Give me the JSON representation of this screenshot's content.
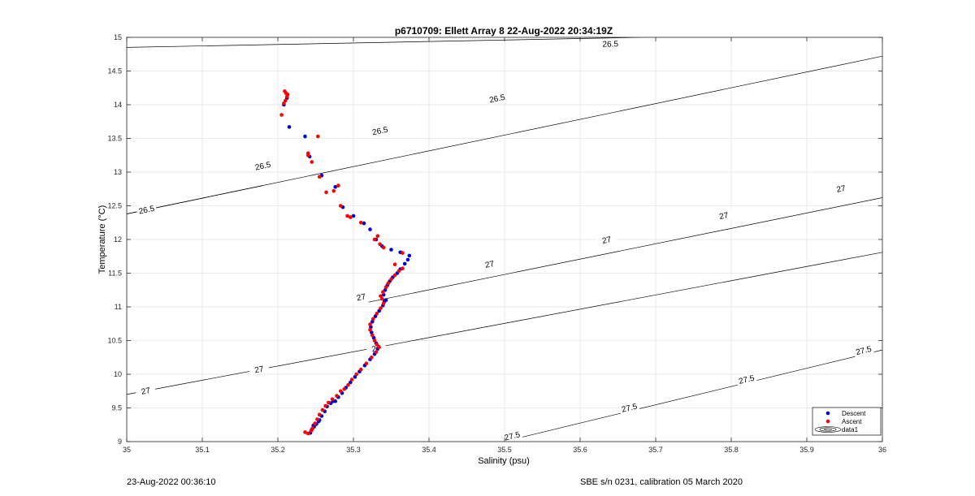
{
  "footer": {
    "left": "23-Aug-2022 00:36:10",
    "right": "SBE s/n 0231, calibration 05 March 2020"
  },
  "chart_data": {
    "type": "scatter",
    "title": "p6710709: Ellett Array 8 22-Aug-2022 20:34:19Z",
    "xlabel": "Salinity (psu)",
    "ylabel": "Temperature (°C)",
    "xlim": [
      35,
      36
    ],
    "ylim": [
      9,
      15
    ],
    "xticks": [
      35,
      35.1,
      35.2,
      35.3,
      35.4,
      35.5,
      35.6,
      35.7,
      35.8,
      35.9,
      36
    ],
    "xtick_labels": [
      "35",
      "35.1",
      "35.2",
      "35.3",
      "35.4",
      "35.5",
      "35.6",
      "35.7",
      "35.8",
      "35.9",
      "36"
    ],
    "yticks": [
      9,
      9.5,
      10,
      10.5,
      11,
      11.5,
      12,
      12.5,
      13,
      13.5,
      14,
      14.5,
      15
    ],
    "ytick_labels": [
      "9",
      "9.5",
      "10",
      "10.5",
      "11",
      "11.5",
      "12",
      "12.5",
      "13",
      "13.5",
      "14",
      "14.5",
      "15"
    ],
    "grid": true,
    "legend_position": "bottom-right",
    "legend": [
      "Descent",
      "Ascent",
      "data1"
    ],
    "contour_lines": [
      {
        "level": "26.5",
        "points": [
          [
            35.0,
            14.85
          ],
          [
            35.68,
            15.0
          ]
        ],
        "label_points": [
          [
            35.64,
            14.91
          ]
        ]
      },
      {
        "level": "26.5",
        "points": [
          [
            35.0,
            12.38
          ],
          [
            35.68,
            13.97
          ],
          [
            36.0,
            14.72
          ]
        ],
        "label_points": [
          [
            35.18,
            13.1
          ],
          [
            35.335,
            13.62
          ],
          [
            35.49,
            14.1
          ]
        ]
      },
      {
        "level": "26.5",
        "points": [
          [
            35.0,
            12.38
          ],
          [
            35.18,
            12.8
          ]
        ],
        "label_points": [
          [
            35.026,
            12.45
          ]
        ]
      },
      {
        "level": "27",
        "points": [
          [
            35.0,
            9.7
          ],
          [
            36.0,
            11.81
          ]
        ],
        "label_points": [
          [
            35.025,
            9.76
          ],
          [
            35.175,
            10.08
          ],
          [
            35.33,
            10.39
          ]
        ]
      },
      {
        "level": "27",
        "points": [
          [
            35.32,
            11.07
          ],
          [
            36.0,
            12.62
          ]
        ],
        "label_points": [
          [
            35.31,
            11.15
          ],
          [
            35.48,
            11.64
          ],
          [
            35.635,
            12.0
          ],
          [
            35.79,
            12.36
          ],
          [
            35.945,
            12.76
          ]
        ]
      },
      {
        "level": "27.5",
        "points": [
          [
            35.48,
            8.95
          ],
          [
            36.0,
            10.36
          ]
        ],
        "label_points": [
          [
            35.51,
            9.09
          ],
          [
            35.665,
            9.51
          ],
          [
            35.82,
            9.93
          ],
          [
            35.975,
            10.36
          ]
        ]
      }
    ],
    "series": [
      {
        "name": "Descent",
        "color": "#0000cc",
        "points": [
          [
            35.243,
            9.13
          ],
          [
            35.245,
            9.18
          ],
          [
            35.248,
            9.22
          ],
          [
            35.251,
            9.26
          ],
          [
            35.255,
            9.32
          ],
          [
            35.258,
            9.38
          ],
          [
            35.262,
            9.45
          ],
          [
            35.265,
            9.52
          ],
          [
            35.27,
            9.57
          ],
          [
            35.276,
            9.6
          ],
          [
            35.28,
            9.66
          ],
          [
            35.285,
            9.72
          ],
          [
            35.29,
            9.8
          ],
          [
            35.296,
            9.88
          ],
          [
            35.302,
            9.96
          ],
          [
            35.308,
            10.04
          ],
          [
            35.315,
            10.13
          ],
          [
            35.322,
            10.22
          ],
          [
            35.328,
            10.3
          ],
          [
            35.332,
            10.38
          ],
          [
            35.33,
            10.46
          ],
          [
            35.327,
            10.54
          ],
          [
            35.324,
            10.62
          ],
          [
            35.323,
            10.7
          ],
          [
            35.325,
            10.78
          ],
          [
            35.329,
            10.86
          ],
          [
            35.334,
            10.94
          ],
          [
            35.339,
            11.02
          ],
          [
            35.341,
            11.08
          ],
          [
            35.343,
            11.1
          ],
          [
            35.34,
            11.18
          ],
          [
            35.342,
            11.25
          ],
          [
            35.345,
            11.32
          ],
          [
            35.348,
            11.38
          ],
          [
            35.352,
            11.44
          ],
          [
            35.358,
            11.5
          ],
          [
            35.362,
            11.56
          ],
          [
            35.368,
            11.64
          ],
          [
            35.372,
            11.7
          ],
          [
            35.374,
            11.76
          ],
          [
            35.362,
            11.81
          ],
          [
            35.35,
            11.85
          ],
          [
            35.338,
            11.9
          ],
          [
            35.33,
            12.0
          ],
          [
            35.322,
            12.15
          ],
          [
            35.314,
            12.24
          ],
          [
            35.3,
            12.35
          ],
          [
            35.286,
            12.48
          ],
          [
            35.276,
            12.78
          ],
          [
            35.258,
            12.95
          ],
          [
            35.242,
            13.23
          ],
          [
            35.236,
            13.53
          ],
          [
            35.215,
            13.67
          ],
          [
            35.208,
            14.0
          ],
          [
            35.212,
            14.1
          ],
          [
            35.247,
            9.24
          ],
          [
            35.254,
            9.3
          ],
          [
            35.273,
            9.6
          ]
        ]
      },
      {
        "name": "Ascent",
        "color": "#ff0000",
        "points": [
          [
            35.236,
            9.14
          ],
          [
            35.24,
            9.12
          ],
          [
            35.244,
            9.16
          ],
          [
            35.246,
            9.2
          ],
          [
            35.249,
            9.27
          ],
          [
            35.252,
            9.33
          ],
          [
            35.255,
            9.4
          ],
          [
            35.259,
            9.47
          ],
          [
            35.263,
            9.53
          ],
          [
            35.267,
            9.58
          ],
          [
            35.272,
            9.63
          ],
          [
            35.278,
            9.68
          ],
          [
            35.283,
            9.75
          ],
          [
            35.288,
            9.78
          ],
          [
            35.293,
            9.84
          ],
          [
            35.298,
            9.92
          ],
          [
            35.304,
            10.0
          ],
          [
            35.31,
            10.07
          ],
          [
            35.317,
            10.16
          ],
          [
            35.324,
            10.25
          ],
          [
            35.33,
            10.33
          ],
          [
            35.334,
            10.4
          ],
          [
            35.331,
            10.44
          ],
          [
            35.328,
            10.5
          ],
          [
            35.325,
            10.58
          ],
          [
            35.322,
            10.66
          ],
          [
            35.322,
            10.74
          ],
          [
            35.326,
            10.82
          ],
          [
            35.331,
            10.9
          ],
          [
            35.336,
            10.98
          ],
          [
            35.34,
            11.05
          ],
          [
            35.338,
            11.12
          ],
          [
            35.336,
            11.16
          ],
          [
            35.339,
            11.22
          ],
          [
            35.343,
            11.29
          ],
          [
            35.346,
            11.35
          ],
          [
            35.35,
            11.41
          ],
          [
            35.355,
            11.47
          ],
          [
            35.36,
            11.53
          ],
          [
            35.365,
            11.57
          ],
          [
            35.355,
            11.63
          ],
          [
            35.365,
            11.8
          ],
          [
            35.34,
            11.88
          ],
          [
            35.335,
            11.93
          ],
          [
            35.328,
            12.0
          ],
          [
            35.332,
            12.05
          ],
          [
            35.31,
            12.25
          ],
          [
            35.296,
            12.33
          ],
          [
            35.292,
            12.35
          ],
          [
            35.283,
            12.5
          ],
          [
            35.28,
            12.8
          ],
          [
            35.274,
            12.72
          ],
          [
            35.264,
            12.7
          ],
          [
            35.255,
            12.93
          ],
          [
            35.245,
            13.15
          ],
          [
            35.24,
            13.25
          ],
          [
            35.24,
            13.28
          ],
          [
            35.253,
            13.53
          ],
          [
            35.205,
            13.85
          ],
          [
            35.208,
            14.02
          ],
          [
            35.21,
            14.06
          ],
          [
            35.212,
            14.12
          ],
          [
            35.211,
            14.17
          ],
          [
            35.209,
            14.2
          ],
          [
            35.213,
            14.15
          ]
        ]
      }
    ]
  }
}
